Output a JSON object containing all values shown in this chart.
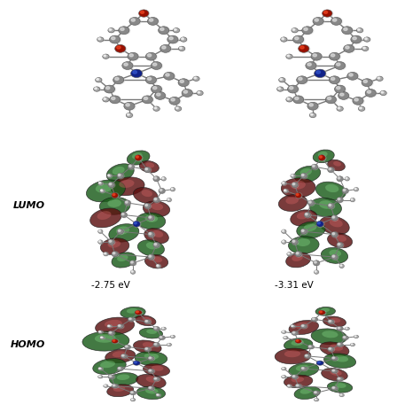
{
  "figure_width": 4.74,
  "figure_height": 4.74,
  "dpi": 100,
  "background_color": "#ffffff",
  "label_lumo": "LUMO",
  "label_homo": "HOMO",
  "energy_left": "-2.75 eV",
  "energy_right": "-3.31 eV",
  "label_fontsize": 8,
  "energy_fontsize": 7.5,
  "label_fontweight": "bold",
  "green_dark": "#1a5c1a",
  "green_mid": "#3a9a3a",
  "green_light": "#7fd07f",
  "red_dark": "#5c1010",
  "red_mid": "#a02020",
  "red_light": "#d06060",
  "atom_gray_dark": "#888888",
  "atom_gray_light": "#dddddd",
  "atom_white_dark": "#aaaaaa",
  "atom_white_light": "#f5f5f5",
  "atom_red_dark": "#991100",
  "atom_red_light": "#ee4422",
  "atom_blue_dark": "#112288",
  "atom_blue_light": "#3355cc",
  "bond_color": "#777777"
}
